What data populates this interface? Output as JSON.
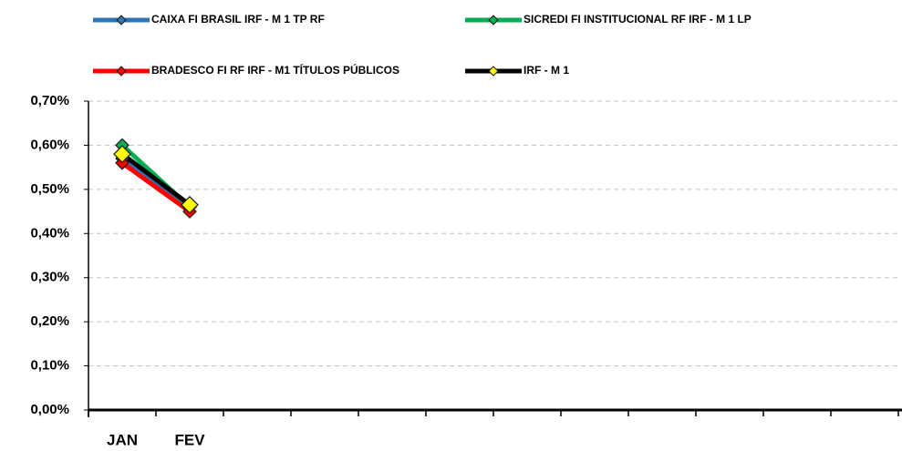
{
  "chart_data": {
    "type": "line",
    "categories": [
      "JAN",
      "FEV",
      null,
      null,
      null,
      null,
      null,
      null,
      null,
      null,
      null,
      null
    ],
    "series": [
      {
        "name": "CAIXA FI BRASIL IRF - M 1 TP RF",
        "color": "#2e75b6",
        "marker_color": "#2e75b6",
        "values": [
          0.57,
          0.46,
          null,
          null,
          null,
          null,
          null,
          null,
          null,
          null,
          null,
          null
        ]
      },
      {
        "name": "SICREDI FI INSTITUCIONAL RF IRF - M 1 LP",
        "color": "#00b050",
        "marker_color": "#00b050",
        "values": [
          0.6,
          0.46,
          null,
          null,
          null,
          null,
          null,
          null,
          null,
          null,
          null,
          null
        ]
      },
      {
        "name": "BRADESCO FI RF IRF - M1 TÍTULOS PÚBLICOS",
        "color": "#ff0000",
        "marker_color": "#ff0000",
        "values": [
          0.56,
          0.45,
          null,
          null,
          null,
          null,
          null,
          null,
          null,
          null,
          null,
          null
        ]
      },
      {
        "name": "IRF - M 1",
        "color": "#000000",
        "marker_color": "#ffff00",
        "values": [
          0.58,
          0.465,
          null,
          null,
          null,
          null,
          null,
          null,
          null,
          null,
          null,
          null
        ]
      }
    ],
    "ylim": [
      0,
      0.7
    ],
    "yticks": [
      {
        "value": 0,
        "label": "0,00%"
      },
      {
        "value": 0.1,
        "label": "0,10%"
      },
      {
        "value": 0.2,
        "label": "0,20%"
      },
      {
        "value": 0.3,
        "label": "0,30%"
      },
      {
        "value": 0.4,
        "label": "0,40%"
      },
      {
        "value": 0.5,
        "label": "0,50%"
      },
      {
        "value": 0.6,
        "label": "0,60%"
      },
      {
        "value": 0.7,
        "label": "0,70%"
      }
    ],
    "grid": true
  }
}
